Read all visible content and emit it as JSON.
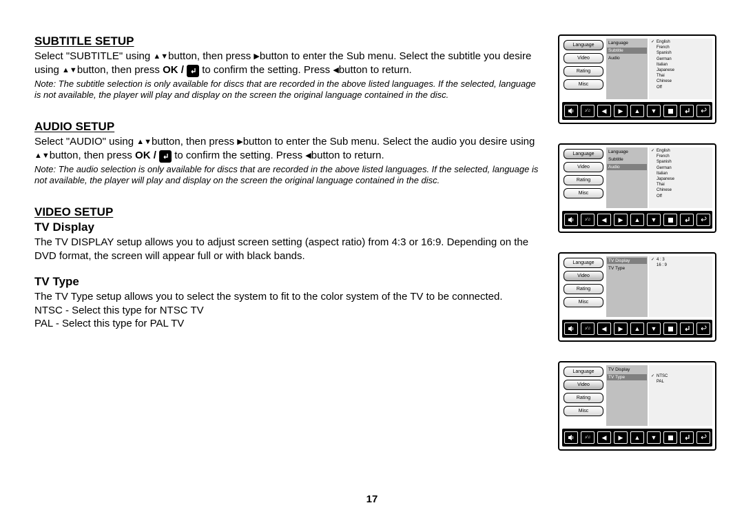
{
  "page_number": "17",
  "colors": {
    "text": "#000000",
    "bg": "#ffffff",
    "osd_mid": "#c0c0c0",
    "osd_right": "#f0f0f0",
    "osd_hl": "#808080"
  },
  "typography": {
    "heading_size": 17,
    "body_size": 15,
    "note_size": 13,
    "osd_label_size": 7
  },
  "sections": {
    "subtitle": {
      "heading": "SUBTITLE SETUP",
      "body_parts": {
        "p1a": "Select \"SUBTITLE\" using ",
        "p1b": "button, then press ",
        "p1c": "button to enter the Sub menu. Select the subtitle you desire using ",
        "p1d": "button, then press ",
        "p1e": "OK / ",
        "p1f": " to confirm the setting. Press ",
        "p1g": "button to return."
      },
      "note": "Note: The subtitle selection is only available for discs that are recorded in the above listed languages. If the selected, language is not available, the player will play and display on the screen the original language contained in the disc."
    },
    "audio": {
      "heading": "AUDIO SETUP",
      "body_parts": {
        "p1a": "Select \"AUDIO\" using ",
        "p1b": "button, then press ",
        "p1c": "button to enter the Sub menu. Select the audio you desire using ",
        "p1d": "button, then press  ",
        "p1e": "OK / ",
        "p1f": "  to confirm the setting. Press ",
        "p1g": "button to return."
      },
      "note": "Note: The audio selection is only available for discs that are recorded in the above listed languages. If the selected, language is not available, the player will play and display on the screen the original language contained in the disc."
    },
    "video": {
      "heading": "VIDEO SETUP",
      "tv_display": {
        "heading": "TV Display",
        "body": "The TV DISPLAY setup allows you to adjust  screen setting (aspect ratio) from 4:3 or 16:9.  Depending on the DVD format, the screen will appear full or with black bands."
      },
      "tv_type": {
        "heading": "TV Type",
        "body": "The TV Type setup allows you to select the system to fit to the color system of the TV to be connected.",
        "ntsc": "NTSC - Select this type for NTSC TV",
        "pal": "PAL - Select this type for PAL TV"
      }
    }
  },
  "osd": {
    "tabs": [
      "Language",
      "Video",
      "Rating",
      "Misc"
    ],
    "icons": [
      "speaker",
      "fx",
      "left",
      "right",
      "up",
      "down",
      "stop",
      "enter",
      "return"
    ],
    "panel_subtitle": {
      "mid": [
        "Language",
        "Subtitle",
        "Audio"
      ],
      "mid_hl_index": 1,
      "right": [
        "English",
        "French",
        "Spanish",
        "German",
        "Italian",
        "Japanese",
        "Thai",
        "Chinese",
        "Off"
      ],
      "checked_index": 0
    },
    "panel_audio": {
      "mid": [
        "Language",
        "Subtitle",
        "Audio"
      ],
      "mid_hl_index": 2,
      "right": [
        "English",
        "French",
        "Spanish",
        "German",
        "Italian",
        "Japanese",
        "Thai",
        "Chinese",
        "Off"
      ],
      "checked_index": 0
    },
    "panel_tvdisplay": {
      "mid": [
        "TV Display",
        "TV Type"
      ],
      "mid_hl_index": 0,
      "right": [
        "4 : 3",
        "16 : 9"
      ],
      "checked_index": 0
    },
    "panel_tvtype": {
      "mid": [
        "TV Display",
        "TV Type"
      ],
      "mid_hl_index": 1,
      "right": [
        "NTSC",
        "PAL"
      ],
      "checked_index": 0,
      "right_offset": true
    }
  }
}
